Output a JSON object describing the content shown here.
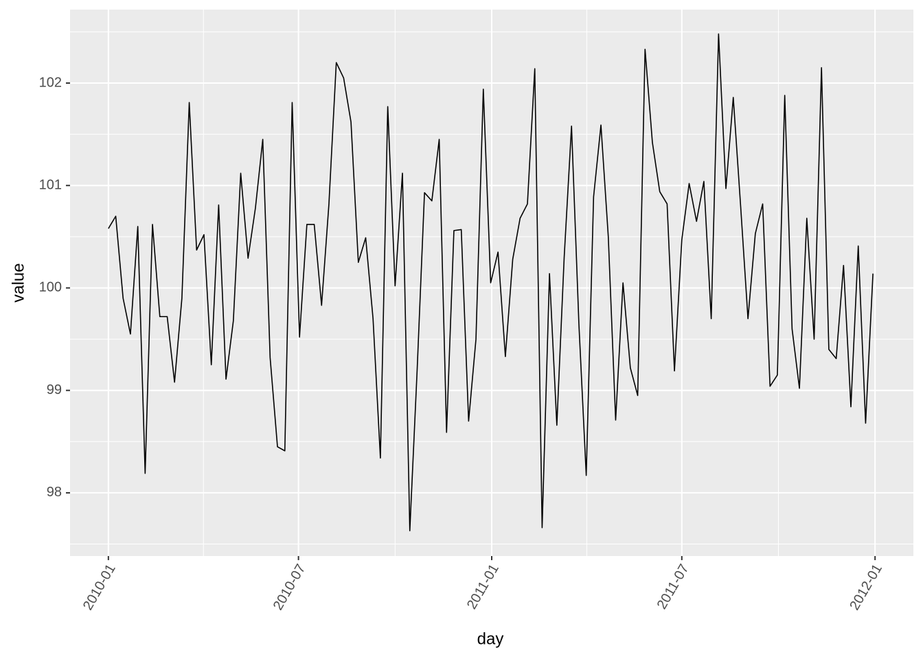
{
  "chart_data": {
    "type": "line",
    "x_label": "day",
    "y_label": "value",
    "x": [
      0,
      7,
      14,
      21,
      28,
      35,
      42,
      49,
      56,
      63,
      70,
      77,
      84,
      91,
      98,
      105,
      112,
      119,
      126,
      133,
      140,
      147,
      154,
      161,
      168,
      175,
      182,
      189,
      196,
      203,
      210,
      217,
      224,
      231,
      238,
      245,
      252,
      259,
      266,
      273,
      280,
      287,
      294,
      301,
      308,
      315,
      322,
      329,
      336,
      343,
      350,
      357,
      364,
      371,
      378,
      385,
      392,
      399,
      406,
      413,
      420,
      427,
      434,
      441,
      448,
      455,
      462,
      469,
      476,
      483,
      490,
      497,
      504,
      511,
      518,
      525,
      532,
      539,
      546,
      553,
      560,
      567,
      574,
      581,
      588,
      595,
      602,
      609,
      616,
      623,
      630,
      637,
      644,
      651,
      658,
      665,
      672,
      679,
      686,
      693,
      700,
      707,
      714,
      721,
      728
    ],
    "series": [
      {
        "name": "value",
        "color": "#000000",
        "values": [
          100.58,
          100.7,
          99.9,
          99.55,
          100.6,
          98.19,
          100.62,
          99.72,
          99.72,
          99.08,
          99.9,
          101.81,
          100.37,
          100.52,
          99.25,
          100.81,
          99.11,
          99.68,
          101.12,
          100.29,
          100.78,
          101.45,
          99.32,
          98.45,
          98.41,
          101.81,
          99.52,
          100.62,
          100.62,
          99.83,
          100.82,
          102.2,
          102.05,
          101.62,
          100.25,
          100.49,
          99.7,
          98.34,
          101.77,
          100.02,
          101.12,
          97.63,
          99.2,
          100.93,
          100.85,
          101.45,
          98.59,
          100.56,
          100.57,
          98.7,
          99.5,
          101.94,
          100.05,
          100.35,
          99.33,
          100.28,
          100.68,
          100.82,
          102.14,
          97.66,
          100.14,
          98.66,
          100.3,
          101.58,
          99.65,
          98.17,
          100.89,
          101.59,
          100.5,
          98.71,
          100.05,
          99.22,
          98.95,
          102.33,
          101.42,
          100.94,
          100.82,
          99.19,
          100.47,
          101.02,
          100.65,
          101.04,
          99.7,
          102.48,
          100.97,
          101.86,
          100.8,
          99.7,
          100.53,
          100.82,
          99.04,
          99.15,
          101.88,
          99.6,
          99.02,
          100.68,
          99.5,
          102.15,
          99.4,
          99.31,
          100.22,
          98.84,
          100.41,
          98.68,
          100.14
        ]
      }
    ],
    "xlim": [
      -36.5,
      766.5
    ],
    "xticks": [
      {
        "value": 0,
        "label": "2010-01"
      },
      {
        "value": 181,
        "label": "2010-07"
      },
      {
        "value": 365,
        "label": "2011-01"
      },
      {
        "value": 546,
        "label": "2011-07"
      },
      {
        "value": 730,
        "label": "2012-01"
      }
    ],
    "ylim": [
      97.383,
      102.717
    ],
    "yticks": [
      98,
      99,
      100,
      101,
      102
    ],
    "grid": true,
    "background": "#ebebeb",
    "grid_color": "#ffffff"
  }
}
